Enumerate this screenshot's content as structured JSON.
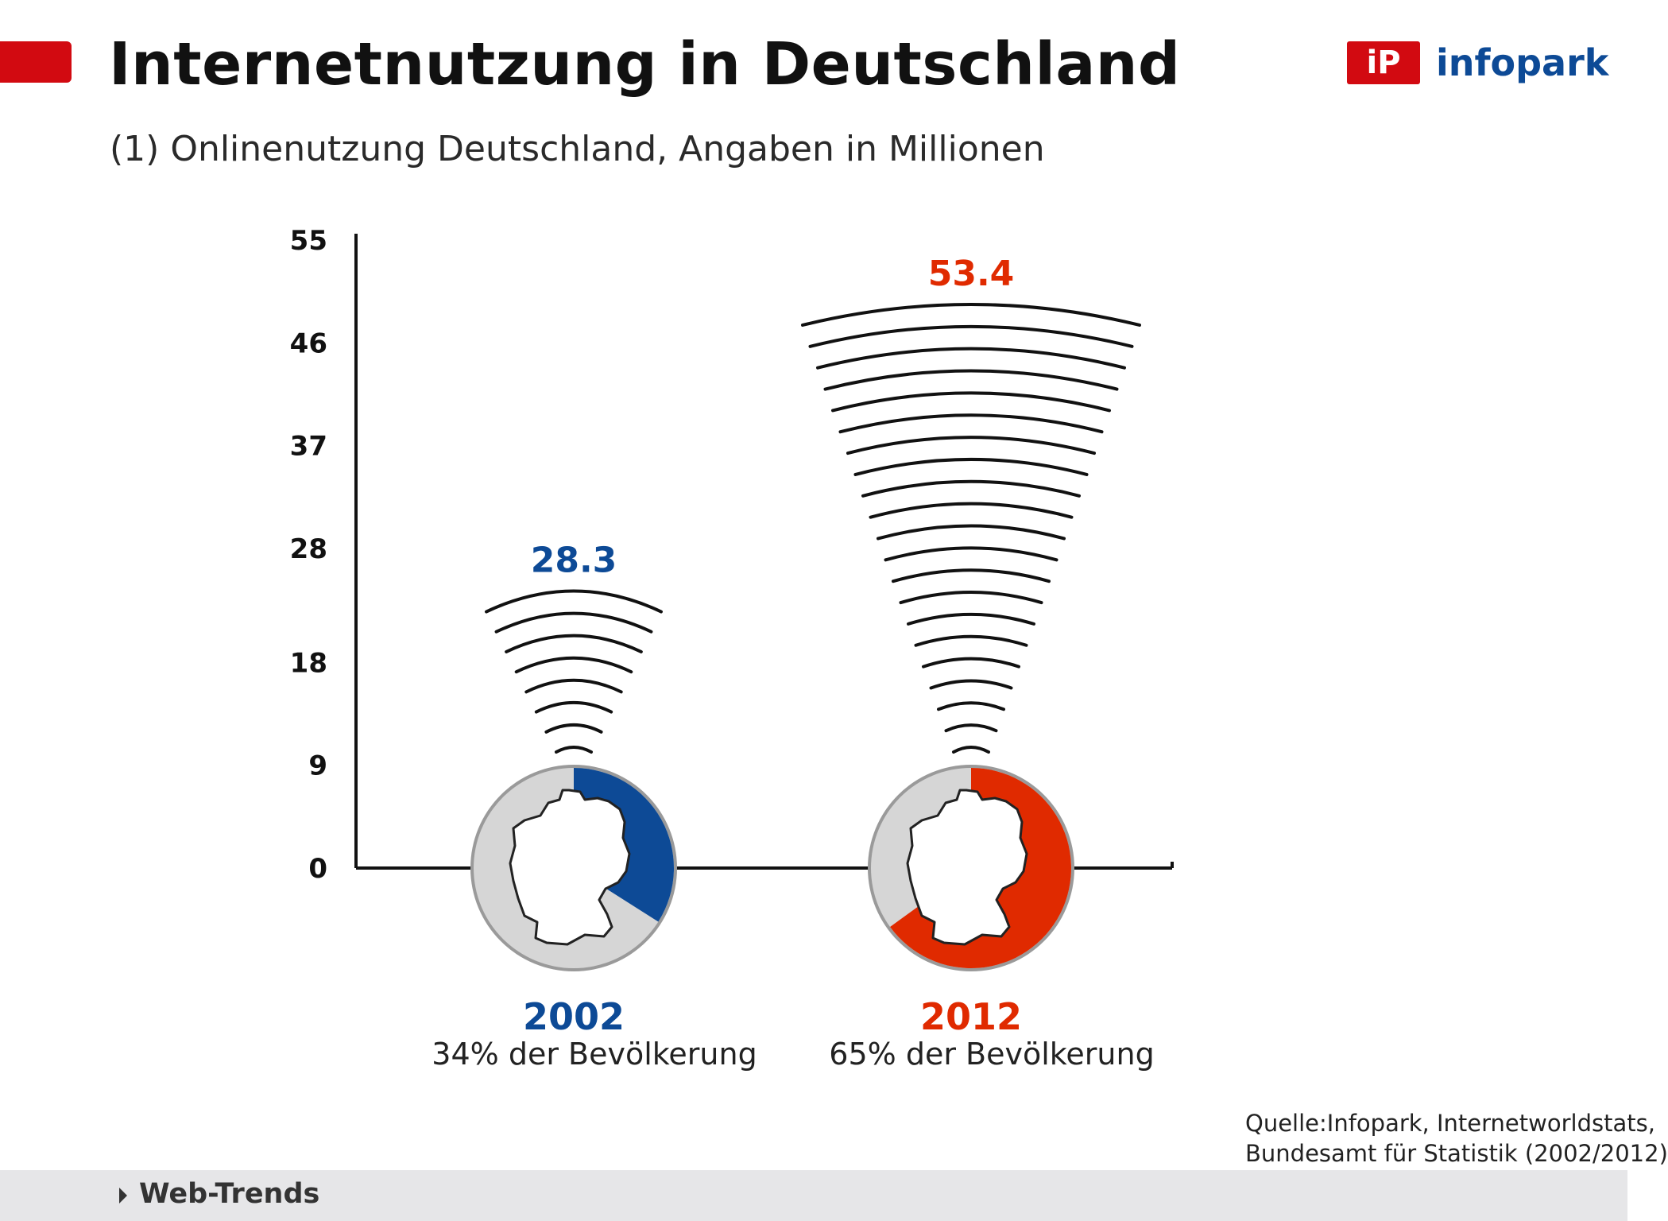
{
  "header": {
    "title": "Internetnutzung in Deutschland",
    "subtitle": "(1) Onlinenutzung Deutschland, Angaben in Millionen"
  },
  "logo": {
    "mark": "iP",
    "text": "infopark",
    "mark_color": "#d20a11",
    "text_color": "#0d4a96"
  },
  "colors": {
    "accent_red": "#d20a11",
    "blue": "#0d4a96",
    "red": "#e02a00",
    "grey_pie": "#d6d6d6"
  },
  "chart_data": {
    "type": "bar",
    "title": "",
    "xlabel": "",
    "ylabel": "",
    "ylim": [
      0,
      55
    ],
    "y_ticks": [
      {
        "value": 0,
        "label": "0"
      },
      {
        "value": 9,
        "label": "9"
      },
      {
        "value": 18,
        "label": "18"
      },
      {
        "value": 28,
        "label": "28"
      },
      {
        "value": 37,
        "label": "37"
      },
      {
        "value": 46,
        "label": "46"
      },
      {
        "value": 55,
        "label": "55"
      }
    ],
    "categories": [
      "2002",
      "2012"
    ],
    "values": [
      28.3,
      53.4
    ],
    "value_labels": [
      "28.3",
      "53.4"
    ],
    "series_colors": [
      "#0d4a96",
      "#e02a00"
    ],
    "population_share_percent": [
      34,
      65
    ],
    "population_labels": [
      "34% der Bevölkerung",
      "65% der Bevölkerung"
    ],
    "grid": false
  },
  "source": {
    "line1": "Quelle:Infopark, Internetworldstats,",
    "line2": "Bundesamt für Statistik (2002/2012)"
  },
  "footer": {
    "label": "Web-Trends"
  }
}
